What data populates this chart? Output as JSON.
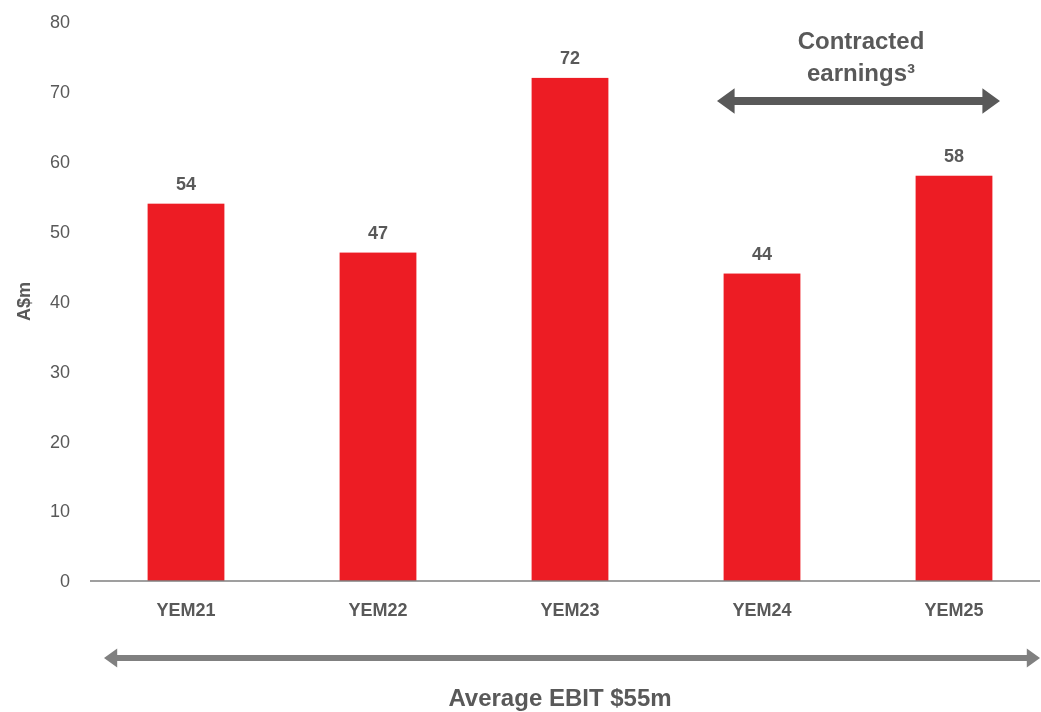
{
  "chart_data": {
    "type": "bar",
    "ylabel": "A$m",
    "categories": [
      "YEM21",
      "YEM22",
      "YEM23",
      "YEM24",
      "YEM25"
    ],
    "values": [
      54,
      47,
      72,
      44,
      58
    ],
    "color": "#ed1c24",
    "ylim": [
      0,
      80
    ],
    "yticks": [
      0,
      10,
      20,
      30,
      40,
      50,
      60,
      70,
      80
    ],
    "grid": false,
    "data_labels": true,
    "annotations": [
      "Contracted earnings³",
      "Average EBIT $55m"
    ]
  }
}
